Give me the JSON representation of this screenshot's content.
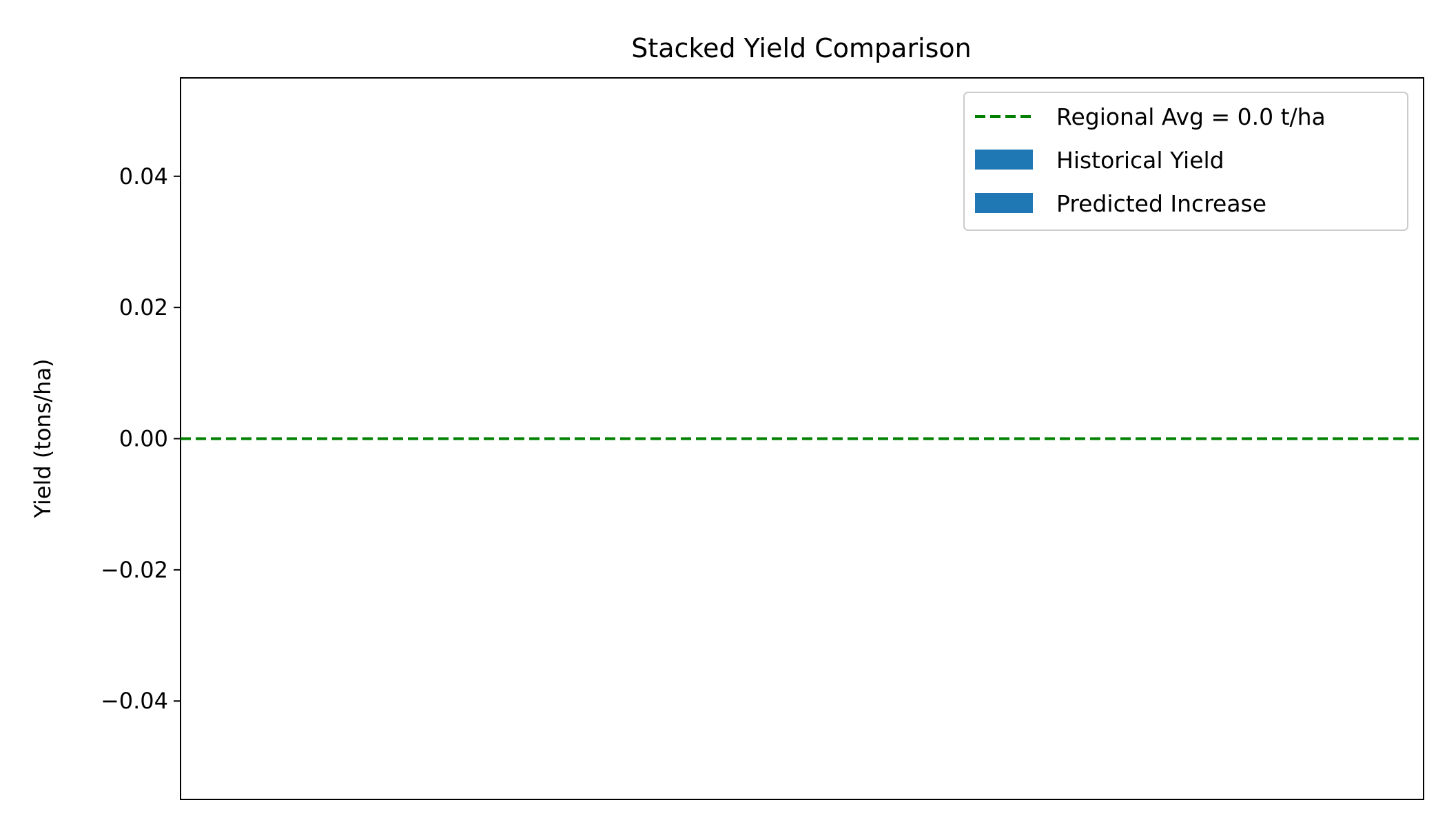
{
  "chart_data": {
    "type": "bar",
    "stacked": true,
    "title": "Stacked Yield Comparison",
    "xlabel": "",
    "ylabel": "Yield (tons/ha)",
    "ylim": [
      -0.055,
      0.055
    ],
    "yticks": [
      -0.04,
      -0.02,
      0.0,
      0.02,
      0.04
    ],
    "ytick_labels": [
      "−0.04",
      "−0.02",
      "0.00",
      "0.02",
      "0.04"
    ],
    "categories": [],
    "series": [
      {
        "name": "Historical Yield",
        "values": [],
        "color": "#1f77b4"
      },
      {
        "name": "Predicted Increase",
        "values": [],
        "color": "#1f77b4"
      }
    ],
    "reference_lines": [
      {
        "name": "Regional Avg = 0.0 t/ha",
        "y": 0.0,
        "color": "#008000",
        "style": "dashed"
      }
    ],
    "legend": {
      "position": "top-right",
      "entries": [
        {
          "label": "Regional Avg = 0.0 t/ha",
          "kind": "line",
          "color": "#008000"
        },
        {
          "label": "Historical Yield",
          "kind": "patch",
          "color": "#1f77b4"
        },
        {
          "label": "Predicted Increase",
          "kind": "patch",
          "color": "#1f77b4"
        }
      ]
    },
    "grid": false
  }
}
